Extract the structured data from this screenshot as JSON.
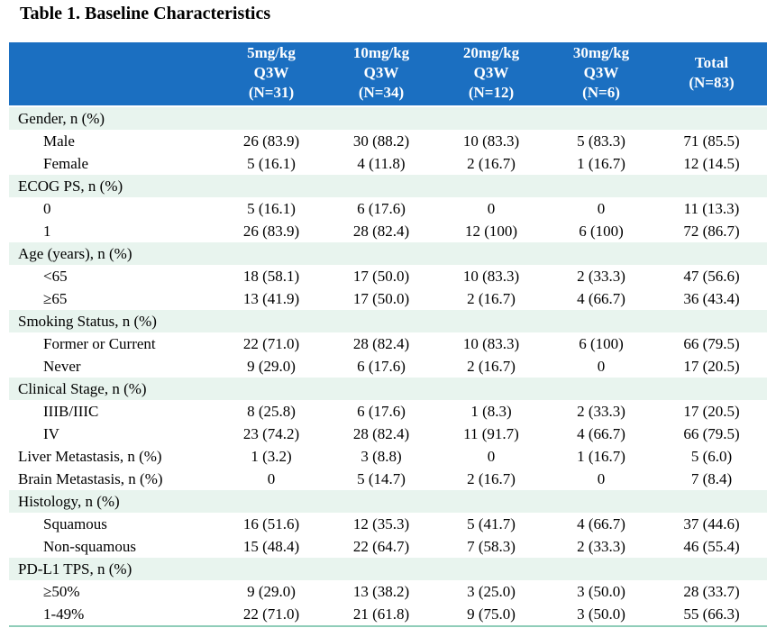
{
  "title": "Table 1. Baseline Characteristics",
  "colors": {
    "header_bg": "#1B6FC1",
    "header_text": "#FFFFFF",
    "category_row_bg": "#E8F4EE",
    "data_row_bg": "#FFFFFF",
    "bottom_border": "#8FCDB9",
    "body_text": "#000000"
  },
  "table": {
    "column_headers": [
      {
        "lines": [
          "5mg/kg",
          "Q3W",
          "(N=31)"
        ]
      },
      {
        "lines": [
          "10mg/kg",
          "Q3W",
          "(N=34)"
        ]
      },
      {
        "lines": [
          "20mg/kg",
          "Q3W",
          "(N=12)"
        ]
      },
      {
        "lines": [
          "30mg/kg",
          "Q3W",
          "(N=6)"
        ]
      },
      {
        "lines": [
          "Total",
          "(N=83)"
        ]
      }
    ],
    "rows": [
      {
        "type": "category",
        "label": "Gender, n (%)"
      },
      {
        "type": "data",
        "indent": true,
        "label": "Male",
        "values": [
          "26 (83.9)",
          "30 (88.2)",
          "10 (83.3)",
          "5 (83.3)",
          "71 (85.5)"
        ]
      },
      {
        "type": "data",
        "indent": true,
        "label": "Female",
        "values": [
          "5 (16.1)",
          "4 (11.8)",
          "2 (16.7)",
          "1 (16.7)",
          "12 (14.5)"
        ]
      },
      {
        "type": "category",
        "label": "ECOG PS, n (%)"
      },
      {
        "type": "data",
        "indent": true,
        "label": "0",
        "values": [
          "5 (16.1)",
          "6 (17.6)",
          "0",
          "0",
          "11 (13.3)"
        ]
      },
      {
        "type": "data",
        "indent": true,
        "label": "1",
        "values": [
          "26 (83.9)",
          "28 (82.4)",
          "12 (100)",
          "6 (100)",
          "72 (86.7)"
        ]
      },
      {
        "type": "category",
        "label": "Age (years), n (%)"
      },
      {
        "type": "data",
        "indent": true,
        "label": "<65",
        "values": [
          "18 (58.1)",
          "17 (50.0)",
          "10 (83.3)",
          "2 (33.3)",
          "47 (56.6)"
        ]
      },
      {
        "type": "data",
        "indent": true,
        "label": "≥65",
        "values": [
          "13 (41.9)",
          "17 (50.0)",
          "2 (16.7)",
          "4 (66.7)",
          "36 (43.4)"
        ]
      },
      {
        "type": "category",
        "label": "Smoking Status, n (%)"
      },
      {
        "type": "data",
        "indent": true,
        "label": "Former or Current",
        "values": [
          "22 (71.0)",
          "28 (82.4)",
          "10 (83.3)",
          "6 (100)",
          "66 (79.5)"
        ]
      },
      {
        "type": "data",
        "indent": true,
        "label": "Never",
        "values": [
          "9 (29.0)",
          "6 (17.6)",
          "2 (16.7)",
          "0",
          "17 (20.5)"
        ]
      },
      {
        "type": "category",
        "label": "Clinical Stage, n (%)"
      },
      {
        "type": "data",
        "indent": true,
        "label": "IIIB/IIIC",
        "values": [
          "8 (25.8)",
          "6 (17.6)",
          "1 (8.3)",
          "2 (33.3)",
          "17 (20.5)"
        ]
      },
      {
        "type": "data",
        "indent": true,
        "label": "IV",
        "values": [
          "23 (74.2)",
          "28 (82.4)",
          "11 (91.7)",
          "4 (66.7)",
          "66 (79.5)"
        ]
      },
      {
        "type": "data",
        "indent": false,
        "label": "Liver Metastasis, n (%)",
        "values": [
          "1 (3.2)",
          "3 (8.8)",
          "0",
          "1 (16.7)",
          "5 (6.0)"
        ]
      },
      {
        "type": "data",
        "indent": false,
        "label": "Brain Metastasis, n (%)",
        "values": [
          "0",
          "5 (14.7)",
          "2 (16.7)",
          "0",
          "7 (8.4)"
        ]
      },
      {
        "type": "category",
        "label": "Histology, n (%)"
      },
      {
        "type": "data",
        "indent": true,
        "label": "Squamous",
        "values": [
          "16 (51.6)",
          "12 (35.3)",
          "5 (41.7)",
          "4 (66.7)",
          "37 (44.6)"
        ]
      },
      {
        "type": "data",
        "indent": true,
        "label": "Non-squamous",
        "values": [
          "15 (48.4)",
          "22 (64.7)",
          "7 (58.3)",
          "2 (33.3)",
          "46 (55.4)"
        ]
      },
      {
        "type": "category",
        "label": "PD-L1 TPS, n (%)"
      },
      {
        "type": "data",
        "indent": true,
        "label": "≥50%",
        "values": [
          "9 (29.0)",
          "13 (38.2)",
          "3 (25.0)",
          "3 (50.0)",
          "28 (33.7)"
        ]
      },
      {
        "type": "data",
        "indent": true,
        "label": "1-49%",
        "values": [
          "22 (71.0)",
          "21 (61.8)",
          "9 (75.0)",
          "3 (50.0)",
          "55 (66.3)"
        ]
      }
    ]
  }
}
